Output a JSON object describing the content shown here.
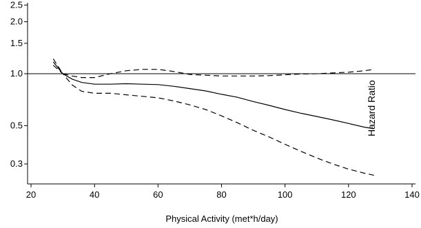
{
  "chart_data": {
    "type": "line",
    "title": "",
    "xlabel": "Physical Activity (met*h/day)",
    "ylabel": "Hazard Ratio",
    "x_ticks": [
      20,
      40,
      60,
      80,
      100,
      120,
      140
    ],
    "x_tick_labels": [
      "20",
      "40",
      "60",
      "80",
      "100",
      "120",
      "140"
    ],
    "y_scale": "log",
    "y_ticks": [
      0.3,
      0.5,
      1.0,
      1.5,
      2.0,
      2.5
    ],
    "y_tick_labels": [
      "0.3",
      "0.5",
      "1.0",
      "1.5",
      "2.0",
      "2.5"
    ],
    "xlim": [
      18,
      142
    ],
    "ylim": [
      0.25,
      2.7
    ],
    "reference_line": 1.0,
    "grid": false,
    "series": [
      {
        "style": "solid",
        "x": [
          27,
          30,
          33,
          36,
          40,
          45,
          50,
          55,
          60,
          65,
          70,
          75,
          80,
          85,
          90,
          95,
          100,
          105,
          110,
          115,
          120,
          125,
          128
        ],
        "y": [
          1.17,
          1.0,
          0.93,
          0.89,
          0.87,
          0.87,
          0.875,
          0.87,
          0.865,
          0.845,
          0.82,
          0.795,
          0.76,
          0.73,
          0.69,
          0.655,
          0.62,
          0.59,
          0.565,
          0.54,
          0.515,
          0.49,
          0.48
        ]
      },
      {
        "style": "dashed",
        "x": [
          27,
          30,
          33,
          36,
          40,
          45,
          50,
          55,
          60,
          65,
          70,
          75,
          80,
          85,
          90,
          95,
          100,
          105,
          110,
          115,
          120,
          125,
          128
        ],
        "y": [
          1.22,
          1.0,
          0.97,
          0.95,
          0.95,
          1.0,
          1.04,
          1.06,
          1.06,
          1.03,
          0.99,
          0.98,
          0.97,
          0.97,
          0.97,
          0.975,
          0.985,
          0.995,
          1.0,
          1.01,
          1.02,
          1.04,
          1.06
        ]
      },
      {
        "style": "dashed",
        "x": [
          27,
          30,
          33,
          36,
          40,
          45,
          50,
          55,
          60,
          65,
          70,
          75,
          80,
          85,
          90,
          95,
          100,
          105,
          110,
          115,
          120,
          125,
          128
        ],
        "y": [
          1.12,
          1.0,
          0.86,
          0.79,
          0.77,
          0.77,
          0.755,
          0.74,
          0.725,
          0.695,
          0.66,
          0.62,
          0.57,
          0.52,
          0.47,
          0.43,
          0.39,
          0.355,
          0.325,
          0.3,
          0.28,
          0.265,
          0.258
        ]
      }
    ]
  }
}
